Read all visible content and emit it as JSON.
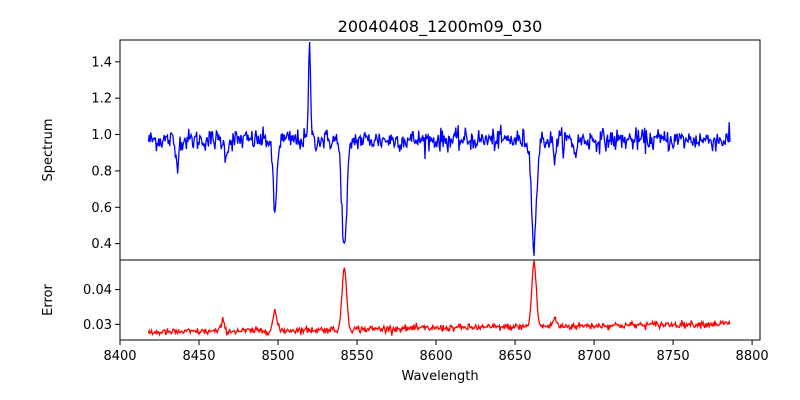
{
  "figure": {
    "title": "20040408_1200m09_030"
  },
  "colors": {
    "spectrum": "#0000ff",
    "error": "#ff0000",
    "axis": "#000000",
    "background": "#ffffff"
  },
  "chart_data": [
    {
      "type": "line",
      "panel": "top",
      "title": "20040408_1200m09_030",
      "xlabel": "",
      "ylabel": "Spectrum",
      "xlim": [
        8400,
        8805
      ],
      "ylim": [
        0.31,
        1.52
      ],
      "x_ticks": [],
      "y_ticks": [
        0.4,
        0.6,
        0.8,
        1.0,
        1.2,
        1.4
      ],
      "y_tick_labels": [
        "0.4",
        "0.6",
        "0.8",
        "1.0",
        "1.2",
        "1.4"
      ],
      "grid": false,
      "series": [
        {
          "color": "#0000ff",
          "continuum": 0.97,
          "x_range": [
            8418,
            8786
          ],
          "features": [
            {
              "center": 8436,
              "depth": 0.12,
              "width": 1.0
            },
            {
              "center": 8467,
              "depth": 0.07,
              "width": 1.2
            },
            {
              "center": 8498,
              "depth": 0.4,
              "width": 1.2
            },
            {
              "center": 8520,
              "depth": -0.5,
              "width": 0.7
            },
            {
              "center": 8542,
              "depth": 0.6,
              "width": 1.6
            },
            {
              "center": 8662,
              "depth": 0.55,
              "width": 1.6
            },
            {
              "center": 8675,
              "depth": 0.08,
              "width": 1.0
            },
            {
              "center": 8688,
              "depth": 0.07,
              "width": 1.0
            }
          ],
          "noise": 0.03
        }
      ]
    },
    {
      "type": "line",
      "panel": "bottom",
      "xlabel": "Wavelength",
      "ylabel": "Error",
      "xlim": [
        8400,
        8805
      ],
      "ylim": [
        0.0255,
        0.0485
      ],
      "x_ticks": [
        8400,
        8450,
        8500,
        8550,
        8600,
        8650,
        8700,
        8750,
        8800
      ],
      "x_tick_labels": [
        "8400",
        "8450",
        "8500",
        "8550",
        "8600",
        "8650",
        "8700",
        "8750",
        "8800"
      ],
      "y_ticks": [
        0.03,
        0.04
      ],
      "y_tick_labels": [
        "0.03",
        "0.04"
      ],
      "grid": false,
      "series": [
        {
          "color": "#ff0000",
          "baseline_start": 0.0277,
          "baseline_end": 0.0302,
          "x_range": [
            8418,
            8786
          ],
          "features": [
            {
              "center": 8465,
              "height": 0.003,
              "width": 1.0
            },
            {
              "center": 8498,
              "height": 0.0055,
              "width": 1.2
            },
            {
              "center": 8542,
              "height": 0.018,
              "width": 1.4
            },
            {
              "center": 8662,
              "height": 0.0185,
              "width": 1.4
            },
            {
              "center": 8675,
              "height": 0.0025,
              "width": 1.0
            }
          ],
          "noise": 0.0005
        }
      ]
    }
  ]
}
